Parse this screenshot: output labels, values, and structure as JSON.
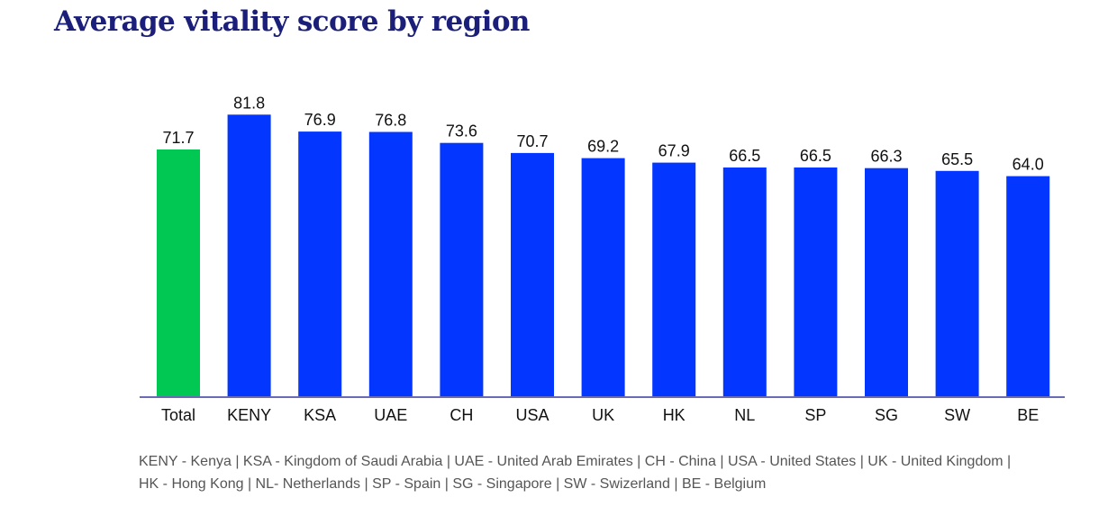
{
  "title": "Average vitality score by region",
  "colors": {
    "title": "#1b1f7a",
    "highlight_bar": "#00c853",
    "bar": "#0336ff",
    "axis": "#6b6bb5",
    "footnote": "#555555"
  },
  "chart_data": {
    "type": "bar",
    "title": "Average vitality score by region",
    "xlabel": "",
    "ylabel": "",
    "ylim": [
      0,
      85
    ],
    "grid": false,
    "categories": [
      "Total",
      "KENY",
      "KSA",
      "UAE",
      "CH",
      "USA",
      "UK",
      "HK",
      "NL",
      "SP",
      "SG",
      "SW",
      "BE"
    ],
    "values": [
      71.7,
      81.8,
      76.9,
      76.8,
      73.6,
      70.7,
      69.2,
      67.9,
      66.5,
      66.5,
      66.3,
      65.5,
      64.0
    ],
    "value_labels": [
      "71.7",
      "81.8",
      "76.9",
      "76.8",
      "73.6",
      "70.7",
      "69.2",
      "67.9",
      "66.5",
      "66.5",
      "66.3",
      "65.5",
      "64.0"
    ],
    "highlight_category": "Total"
  },
  "footnote": {
    "line1": "KENY - Kenya  |  KSA - Kingdom of Saudi Arabia  |  UAE - United Arab Emirates  |  CH - China  |  USA - United States  |  UK - United Kingdom  |",
    "line2": "HK - Hong Kong  |  NL- Netherlands  |  SP - Spain  |  SG - Singapore  |  SW - Swizerland  |  BE - Belgium"
  }
}
